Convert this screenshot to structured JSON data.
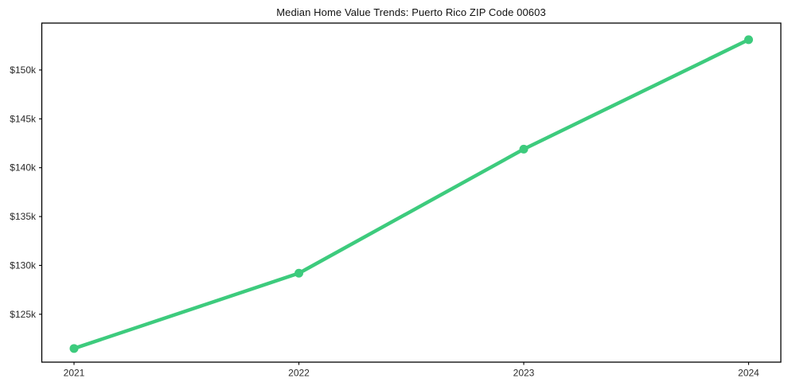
{
  "title": "Median Home Value Trends: Puerto Rico ZIP Code 00603",
  "colors": {
    "line": "#3dcb7d",
    "marker": "#3dcb7d",
    "axis": "#000000",
    "tick_label": "#2b2b2b",
    "background": "#ffffff"
  },
  "chart_data": {
    "type": "line",
    "title": "Median Home Value Trends: Puerto Rico ZIP Code 00603",
    "categories": [
      "2021",
      "2022",
      "2023",
      "2024"
    ],
    "values": [
      121500,
      129200,
      141900,
      153100
    ],
    "xlabel": "",
    "ylabel": "",
    "ylim": [
      120100,
      154800
    ],
    "yticks": [
      125000,
      130000,
      135000,
      140000,
      145000,
      150000
    ],
    "ytick_labels": [
      "$125k",
      "$130k",
      "$135k",
      "$140k",
      "$145k",
      "$150k"
    ],
    "grid": false,
    "legend": "none",
    "marker": "circle",
    "line_width": 4.5,
    "marker_radius": 5.5
  }
}
